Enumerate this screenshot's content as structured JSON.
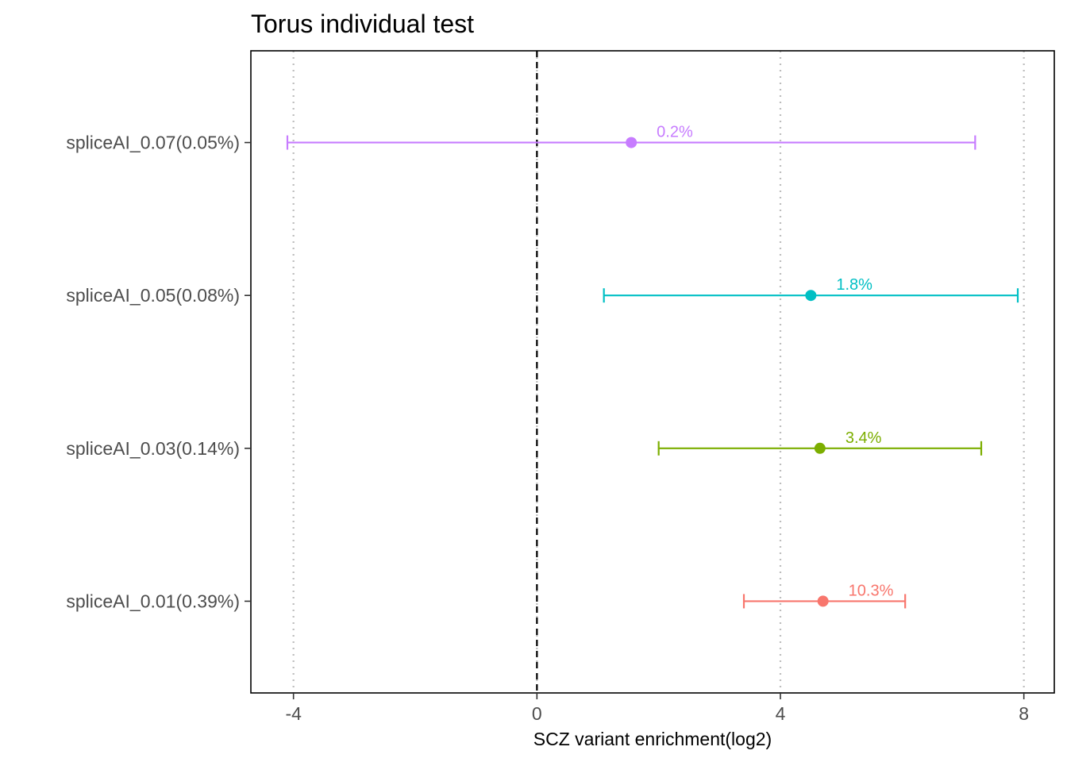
{
  "chart_data": {
    "type": "forest",
    "title": "Torus individual test",
    "xlabel": "SCZ variant enrichment(log2)",
    "ylabel": "",
    "xlim": [
      -4.7,
      8.5
    ],
    "x_ticks": [
      -4,
      0,
      4,
      8
    ],
    "x_tick_labels": [
      "-4",
      "0",
      "4",
      "8"
    ],
    "reference_line": 0,
    "grid": "vertical dotted at major ticks",
    "categories": [
      "spliceAI_0.07(0.05%)",
      "spliceAI_0.05(0.08%)",
      "spliceAI_0.03(0.14%)",
      "spliceAI_0.01(0.39%)"
    ],
    "series": [
      {
        "name": "spliceAI_0.07(0.05%)",
        "estimate": 1.55,
        "lower": -4.1,
        "upper": 7.2,
        "label": "0.2%",
        "color": "#C77CFF"
      },
      {
        "name": "spliceAI_0.05(0.08%)",
        "estimate": 4.5,
        "lower": 1.1,
        "upper": 7.9,
        "label": "1.8%",
        "color": "#00BFC4"
      },
      {
        "name": "spliceAI_0.03(0.14%)",
        "estimate": 4.65,
        "lower": 2.0,
        "upper": 7.3,
        "label": "3.4%",
        "color": "#7CAE00"
      },
      {
        "name": "spliceAI_0.01(0.39%)",
        "estimate": 4.7,
        "lower": 3.4,
        "upper": 6.05,
        "label": "10.3%",
        "color": "#F8766D"
      }
    ]
  }
}
